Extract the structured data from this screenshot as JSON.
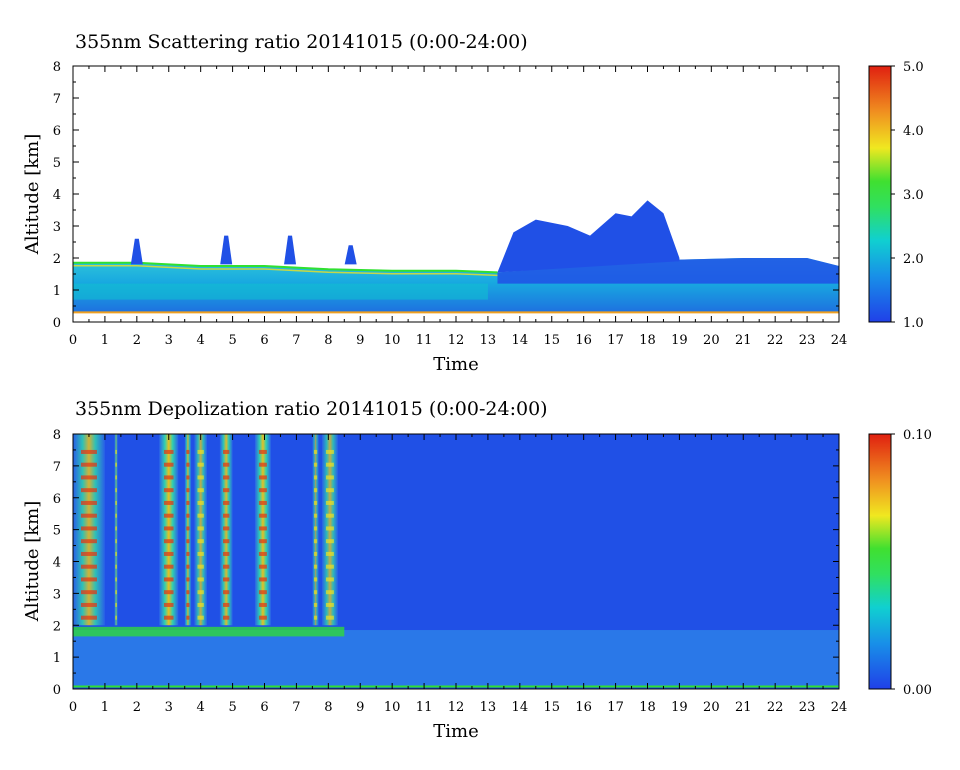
{
  "chart_data": [
    {
      "type": "heatmap",
      "title": "355nm Scattering ratio  20141015 (0:00-24:00)",
      "xlabel": "Time",
      "ylabel": "Altitude [km]",
      "xlim": [
        0,
        24
      ],
      "ylim": [
        0,
        8
      ],
      "x_ticks": [
        "0",
        "1",
        "2",
        "3",
        "4",
        "5",
        "6",
        "7",
        "8",
        "9",
        "10",
        "11",
        "12",
        "13",
        "14",
        "15",
        "16",
        "17",
        "18",
        "19",
        "20",
        "21",
        "22",
        "23",
        "24"
      ],
      "y_ticks": [
        "0",
        "1",
        "2",
        "3",
        "4",
        "5",
        "6",
        "7",
        "8"
      ],
      "colorbar": {
        "min": 1.0,
        "max": 5.0,
        "tick_labels": [
          "1.0",
          "2.0",
          "3.0",
          "4.0",
          "5.0"
        ]
      },
      "colors": {
        "low": "#2050e6",
        "mid_low": "#10c0d0",
        "mid": "#30e030",
        "mid_high": "#f0e020",
        "high": "#e83010"
      },
      "boundary_layer_top_km": [
        [
          0,
          1.85
        ],
        [
          2,
          1.85
        ],
        [
          4,
          1.75
        ],
        [
          6,
          1.75
        ],
        [
          8,
          1.65
        ],
        [
          10,
          1.6
        ],
        [
          12,
          1.6
        ],
        [
          13.3,
          1.55
        ],
        [
          19,
          1.95
        ],
        [
          21,
          2.0
        ],
        [
          23,
          2.0
        ],
        [
          24,
          1.75
        ]
      ],
      "cloud_top_km": [
        [
          13.3,
          1.55
        ],
        [
          13.8,
          2.8
        ],
        [
          14.5,
          3.2
        ],
        [
          15.5,
          3.0
        ],
        [
          16.2,
          2.7
        ],
        [
          17,
          3.4
        ],
        [
          17.5,
          3.3
        ],
        [
          18,
          3.8
        ],
        [
          18.5,
          3.4
        ],
        [
          19,
          2.0
        ]
      ],
      "plumes": [
        {
          "x": 2.0,
          "top_km": 2.6
        },
        {
          "x": 4.8,
          "top_km": 2.7
        },
        {
          "x": 6.8,
          "top_km": 2.7
        },
        {
          "x": 8.7,
          "top_km": 2.4
        }
      ]
    },
    {
      "type": "heatmap",
      "title": "355nm Depolization ratio  20141015 (0:00-24:00)",
      "xlabel": "Time",
      "ylabel": "Altitude [km]",
      "xlim": [
        0,
        24
      ],
      "ylim": [
        0,
        8
      ],
      "x_ticks": [
        "0",
        "1",
        "2",
        "3",
        "4",
        "5",
        "6",
        "7",
        "8",
        "9",
        "10",
        "11",
        "12",
        "13",
        "14",
        "15",
        "16",
        "17",
        "18",
        "19",
        "20",
        "21",
        "22",
        "23",
        "24"
      ],
      "y_ticks": [
        "0",
        "1",
        "2",
        "3",
        "4",
        "5",
        "6",
        "7",
        "8"
      ],
      "colorbar": {
        "min": 0.0,
        "max": 0.1,
        "tick_labels": [
          "0.00",
          "0.10"
        ]
      },
      "colors": {
        "low": "#2050e6",
        "mid_low": "#10c0d0",
        "mid": "#30e030",
        "mid_high": "#f0e020",
        "high": "#e83010"
      },
      "layer_top_km": 1.85,
      "high_depol_columns": [
        {
          "x0": 0.0,
          "x1": 1.0,
          "level": 0.08
        },
        {
          "x0": 1.3,
          "x1": 1.4,
          "level": 0.05
        },
        {
          "x0": 2.7,
          "x1": 3.3,
          "level": 0.1
        },
        {
          "x0": 3.5,
          "x1": 3.7,
          "level": 0.08
        },
        {
          "x0": 3.8,
          "x1": 4.2,
          "level": 0.07
        },
        {
          "x0": 4.6,
          "x1": 5.0,
          "level": 0.09
        },
        {
          "x0": 5.7,
          "x1": 6.2,
          "level": 0.1
        },
        {
          "x0": 7.5,
          "x1": 7.7,
          "level": 0.05
        },
        {
          "x0": 7.8,
          "x1": 8.3,
          "level": 0.07
        }
      ]
    }
  ]
}
